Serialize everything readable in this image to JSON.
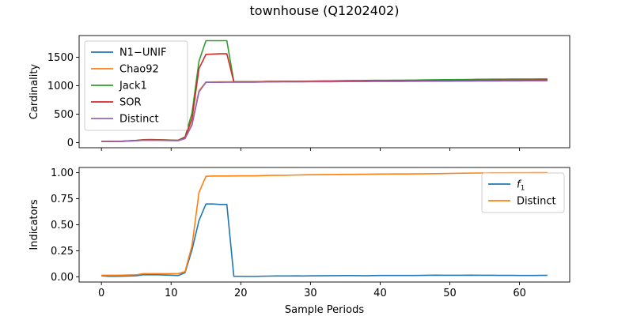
{
  "figure": {
    "title": "townhouse (Q1202402)",
    "xlabel": "Sample Periods"
  },
  "chart_data": [
    {
      "type": "line",
      "ylabel": "Cardinality",
      "xlim": [
        -3.2,
        67.2
      ],
      "ylim": [
        -90,
        1880
      ],
      "xticks": [
        0,
        10,
        20,
        30,
        40,
        50,
        60
      ],
      "yticks": [
        0,
        500,
        1000,
        1500
      ],
      "show_xticklabels": false,
      "legend": "top-left",
      "x": [
        0,
        1,
        2,
        3,
        4,
        5,
        6,
        7,
        8,
        9,
        10,
        11,
        12,
        13,
        14,
        15,
        16,
        17,
        18,
        19,
        20,
        21,
        22,
        23,
        24,
        25,
        26,
        27,
        28,
        29,
        30,
        31,
        32,
        33,
        34,
        35,
        36,
        37,
        38,
        39,
        40,
        41,
        42,
        43,
        44,
        45,
        46,
        47,
        48,
        49,
        50,
        51,
        52,
        53,
        54,
        55,
        56,
        57,
        58,
        59,
        60,
        61,
        62,
        63,
        64
      ],
      "series": [
        {
          "name": "N1−UNIF",
          "color": "#1f77b4",
          "values": [
            18,
            20,
            21,
            22,
            28,
            33,
            42,
            43,
            42,
            40,
            38,
            36,
            75,
            320,
            900,
            1062,
            1063,
            1064,
            1065,
            1066,
            1066,
            1066,
            1067,
            1070,
            1072,
            1072,
            1073,
            1073,
            1074,
            1075,
            1076,
            1077,
            1078,
            1078,
            1079,
            1080,
            1081,
            1081,
            1082,
            1083,
            1084,
            1084,
            1085,
            1085,
            1086,
            1087,
            1088,
            1089,
            1089,
            1090,
            1090,
            1091,
            1092,
            1093,
            1094,
            1094,
            1095,
            1096,
            1096,
            1097,
            1097,
            1098,
            1098,
            1099,
            1100
          ]
        },
        {
          "name": "Chao92",
          "color": "#ff7f0e",
          "values": [
            20,
            21,
            22,
            23,
            30,
            36,
            44,
            46,
            44,
            42,
            40,
            38,
            80,
            330,
            910,
            1065,
            1066,
            1067,
            1068,
            1068,
            1068,
            1068,
            1069,
            1072,
            1074,
            1074,
            1075,
            1075,
            1076,
            1077,
            1078,
            1079,
            1080,
            1080,
            1081,
            1082,
            1083,
            1083,
            1084,
            1085,
            1086,
            1086,
            1087,
            1087,
            1088,
            1089,
            1090,
            1091,
            1091,
            1092,
            1092,
            1093,
            1094,
            1095,
            1096,
            1096,
            1097,
            1098,
            1098,
            1099,
            1099,
            1100,
            1100,
            1101,
            1102
          ]
        },
        {
          "name": "Jack1",
          "color": "#2ca02c",
          "values": [
            22,
            23,
            24,
            25,
            33,
            40,
            52,
            55,
            52,
            49,
            45,
            42,
            100,
            520,
            1430,
            1790,
            1790,
            1790,
            1790,
            1070,
            1068,
            1068,
            1069,
            1072,
            1075,
            1075,
            1076,
            1076,
            1077,
            1078,
            1080,
            1082,
            1084,
            1084,
            1086,
            1088,
            1090,
            1090,
            1092,
            1093,
            1094,
            1094,
            1095,
            1096,
            1097,
            1098,
            1100,
            1102,
            1104,
            1105,
            1106,
            1107,
            1108,
            1110,
            1112,
            1113,
            1114,
            1115,
            1115,
            1116,
            1116,
            1117,
            1117,
            1118,
            1118
          ]
        },
        {
          "name": "SOR",
          "color": "#d62728",
          "values": [
            21,
            22,
            23,
            24,
            31,
            38,
            48,
            50,
            48,
            45,
            42,
            40,
            90,
            420,
            1300,
            1550,
            1555,
            1560,
            1560,
            1068,
            1067,
            1067,
            1068,
            1071,
            1073,
            1073,
            1074,
            1074,
            1075,
            1076,
            1077,
            1078,
            1079,
            1079,
            1080,
            1081,
            1082,
            1082,
            1083,
            1084,
            1085,
            1085,
            1086,
            1086,
            1087,
            1088,
            1089,
            1090,
            1090,
            1091,
            1091,
            1092,
            1093,
            1094,
            1095,
            1095,
            1096,
            1097,
            1097,
            1098,
            1098,
            1099,
            1099,
            1100,
            1101
          ]
        },
        {
          "name": "Distinct",
          "color": "#9467bd",
          "values": [
            18,
            19,
            20,
            21,
            27,
            32,
            40,
            41,
            40,
            38,
            36,
            34,
            70,
            310,
            890,
            1058,
            1058,
            1059,
            1060,
            1060,
            1060,
            1060,
            1061,
            1064,
            1066,
            1066,
            1067,
            1067,
            1068,
            1068,
            1069,
            1070,
            1070,
            1070,
            1071,
            1072,
            1072,
            1072,
            1073,
            1074,
            1074,
            1074,
            1075,
            1075,
            1076,
            1076,
            1077,
            1077,
            1077,
            1078,
            1078,
            1079,
            1080,
            1080,
            1081,
            1081,
            1082,
            1082,
            1083,
            1083,
            1083,
            1084,
            1084,
            1085,
            1085
          ]
        }
      ]
    },
    {
      "type": "line",
      "ylabel": "Indicators",
      "xlim": [
        -3.2,
        67.2
      ],
      "ylim": [
        -0.05,
        1.05
      ],
      "xticks": [
        0,
        10,
        20,
        30,
        40,
        50,
        60
      ],
      "yticks": [
        0.0,
        0.25,
        0.5,
        0.75,
        1.0
      ],
      "ytick_labels": [
        "0.00",
        "0.25",
        "0.50",
        "0.75",
        "1.00"
      ],
      "show_xticklabels": true,
      "legend": "top-right",
      "x": [
        0,
        1,
        2,
        3,
        4,
        5,
        6,
        7,
        8,
        9,
        10,
        11,
        12,
        13,
        14,
        15,
        16,
        17,
        18,
        19,
        20,
        21,
        22,
        23,
        24,
        25,
        26,
        27,
        28,
        29,
        30,
        31,
        32,
        33,
        34,
        35,
        36,
        37,
        38,
        39,
        40,
        41,
        42,
        43,
        44,
        45,
        46,
        47,
        48,
        49,
        50,
        51,
        52,
        53,
        54,
        55,
        56,
        57,
        58,
        59,
        60,
        61,
        62,
        63,
        64
      ],
      "series": [
        {
          "name": "f1",
          "label_main": "f",
          "label_sub": "1",
          "color": "#1f77b4",
          "values": [
            0.01,
            0.005,
            0.005,
            0.006,
            0.008,
            0.01,
            0.02,
            0.02,
            0.02,
            0.018,
            0.015,
            0.012,
            0.04,
            0.26,
            0.54,
            0.7,
            0.7,
            0.695,
            0.695,
            0.005,
            0.005,
            0.004,
            0.004,
            0.006,
            0.007,
            0.008,
            0.008,
            0.008,
            0.009,
            0.008,
            0.009,
            0.01,
            0.01,
            0.011,
            0.011,
            0.012,
            0.012,
            0.011,
            0.01,
            0.012,
            0.013,
            0.013,
            0.013,
            0.013,
            0.013,
            0.013,
            0.014,
            0.015,
            0.016,
            0.015,
            0.015,
            0.015,
            0.015,
            0.016,
            0.015,
            0.015,
            0.015,
            0.014,
            0.014,
            0.014,
            0.013,
            0.013,
            0.013,
            0.014,
            0.014
          ]
        },
        {
          "name": "Distinct",
          "color": "#ff7f0e",
          "values": [
            0.015,
            0.015,
            0.015,
            0.016,
            0.018,
            0.02,
            0.03,
            0.03,
            0.03,
            0.03,
            0.03,
            0.03,
            0.05,
            0.3,
            0.81,
            0.965,
            0.968,
            0.968,
            0.968,
            0.969,
            0.97,
            0.97,
            0.97,
            0.972,
            0.974,
            0.975,
            0.975,
            0.976,
            0.978,
            0.979,
            0.98,
            0.981,
            0.982,
            0.982,
            0.983,
            0.984,
            0.984,
            0.985,
            0.985,
            0.986,
            0.987,
            0.987,
            0.988,
            0.988,
            0.988,
            0.989,
            0.989,
            0.99,
            0.991,
            0.992,
            0.993,
            0.994,
            0.995,
            0.996,
            0.997,
            0.997,
            0.998,
            0.998,
            0.998,
            0.999,
            0.999,
            0.999,
            1.0,
            1.0,
            1.0
          ]
        }
      ]
    }
  ]
}
